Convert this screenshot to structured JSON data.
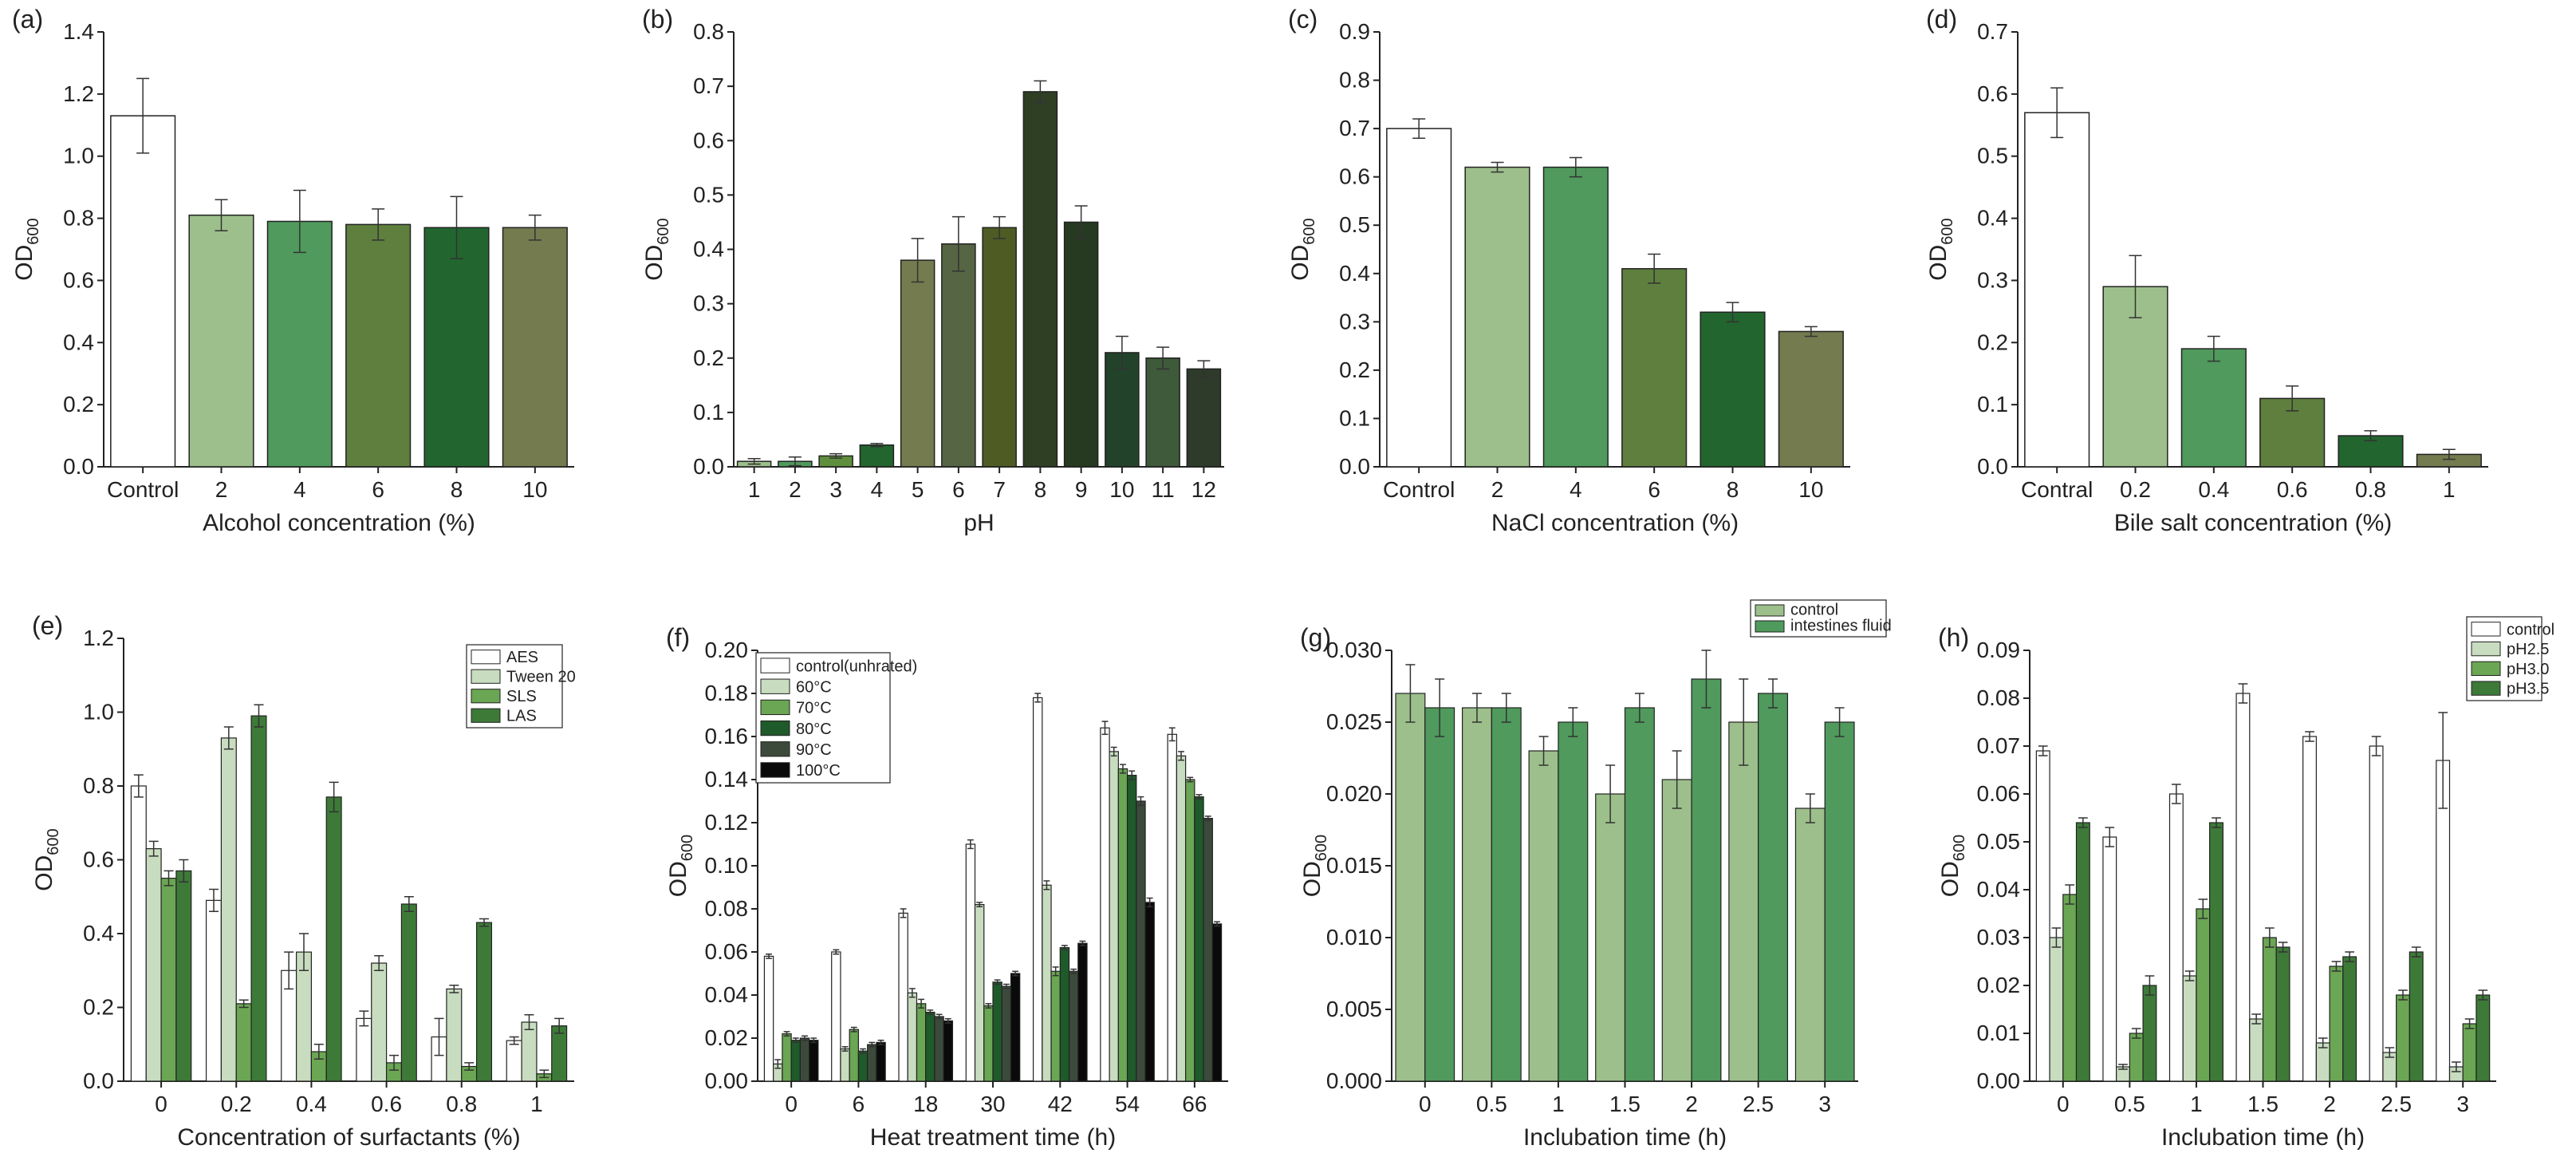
{
  "chart_data": [
    {
      "panel": "(a)",
      "type": "bar",
      "xlabel": "Alcohol concentration (%)",
      "ylabel": "OD",
      "ylabel_sub": "600",
      "ylim": [
        0,
        1.4
      ],
      "yticks": [
        "0.0",
        "0.2",
        "0.4",
        "0.6",
        "0.8",
        "1.0",
        "1.2",
        "1.4"
      ],
      "categories": [
        "Control",
        "2",
        "4",
        "6",
        "8",
        "10"
      ],
      "values": [
        1.13,
        0.81,
        0.79,
        0.78,
        0.77,
        0.77
      ],
      "errors": [
        0.12,
        0.05,
        0.1,
        0.05,
        0.1,
        0.04
      ],
      "colors": [
        "#ffffff",
        "#9dbf8b",
        "#4f9a5c",
        "#5f7f3e",
        "#22652f",
        "#737b4f"
      ]
    },
    {
      "panel": "(b)",
      "type": "bar",
      "xlabel": "pH",
      "ylabel": "OD",
      "ylabel_sub": "600",
      "ylim": [
        0,
        0.8
      ],
      "yticks": [
        "0.0",
        "0.1",
        "0.2",
        "0.3",
        "0.4",
        "0.5",
        "0.6",
        "0.7",
        "0.8"
      ],
      "categories": [
        "1",
        "2",
        "3",
        "4",
        "5",
        "6",
        "7",
        "8",
        "9",
        "10",
        "11",
        "12"
      ],
      "values": [
        0.01,
        0.01,
        0.02,
        0.04,
        0.38,
        0.41,
        0.44,
        0.69,
        0.45,
        0.21,
        0.2,
        0.18
      ],
      "errors": [
        0.005,
        0.008,
        0.004,
        0.003,
        0.04,
        0.05,
        0.02,
        0.02,
        0.03,
        0.03,
        0.02,
        0.015
      ],
      "colors": [
        "#9dbf8b",
        "#4f9a5c",
        "#5f8f3e",
        "#22652f",
        "#737b4f",
        "#566543",
        "#4e5c24",
        "#2f3f24",
        "#263a22",
        "#22432a",
        "#3f5a3a",
        "#2e3a2a"
      ]
    },
    {
      "panel": "(c)",
      "type": "bar",
      "xlabel": "NaCl concentration (%)",
      "ylabel": "OD",
      "ylabel_sub": "600",
      "ylim": [
        0,
        0.9
      ],
      "yticks": [
        "0.0",
        "0.1",
        "0.2",
        "0.3",
        "0.4",
        "0.5",
        "0.6",
        "0.7",
        "0.8",
        "0.9"
      ],
      "categories": [
        "Control",
        "2",
        "4",
        "6",
        "8",
        "10"
      ],
      "values": [
        0.7,
        0.62,
        0.62,
        0.41,
        0.32,
        0.28
      ],
      "errors": [
        0.02,
        0.01,
        0.02,
        0.03,
        0.02,
        0.01
      ],
      "colors": [
        "#ffffff",
        "#9dbf8b",
        "#4f9a5c",
        "#5f7f3e",
        "#22652f",
        "#737b4f"
      ]
    },
    {
      "panel": "(d)",
      "type": "bar",
      "xlabel": "Bile salt concentration (%)",
      "ylabel": "OD",
      "ylabel_sub": "600",
      "ylim": [
        0,
        0.7
      ],
      "yticks": [
        "0.0",
        "0.1",
        "0.2",
        "0.3",
        "0.4",
        "0.5",
        "0.6",
        "0.7"
      ],
      "categories": [
        "Contral",
        "0.2",
        "0.4",
        "0.6",
        "0.8",
        "1"
      ],
      "values": [
        0.57,
        0.29,
        0.19,
        0.11,
        0.05,
        0.02
      ],
      "errors": [
        0.04,
        0.05,
        0.02,
        0.02,
        0.008,
        0.008
      ],
      "colors": [
        "#ffffff",
        "#9dbf8b",
        "#4f9a5c",
        "#5f7f3e",
        "#22652f",
        "#737b4f"
      ]
    },
    {
      "panel": "(e)",
      "type": "bar",
      "xlabel": "Concentration of surfactants (%)",
      "ylabel": "OD",
      "ylabel_sub": "600",
      "ylim": [
        0,
        1.2
      ],
      "yticks": [
        "0.0",
        "0.2",
        "0.4",
        "0.6",
        "0.8",
        "1.0",
        "1.2"
      ],
      "categories": [
        "0",
        "0.2",
        "0.4",
        "0.6",
        "0.8",
        "1"
      ],
      "legend_position": "top-right",
      "series": [
        {
          "name": "AES",
          "color": "#ffffff",
          "values": [
            0.8,
            0.49,
            0.3,
            0.17,
            0.12,
            0.11
          ],
          "errors": [
            0.03,
            0.03,
            0.05,
            0.02,
            0.05,
            0.01
          ]
        },
        {
          "name": "Tween 20",
          "color": "#c8dcc0",
          "values": [
            0.63,
            0.93,
            0.35,
            0.32,
            0.25,
            0.16
          ],
          "errors": [
            0.02,
            0.03,
            0.05,
            0.02,
            0.01,
            0.02
          ]
        },
        {
          "name": "SLS",
          "color": "#6aa653",
          "values": [
            0.55,
            0.21,
            0.08,
            0.05,
            0.04,
            0.02
          ],
          "errors": [
            0.02,
            0.01,
            0.02,
            0.02,
            0.01,
            0.01
          ]
        },
        {
          "name": "LAS",
          "color": "#3d7a38",
          "values": [
            0.57,
            0.99,
            0.77,
            0.48,
            0.43,
            0.15
          ],
          "errors": [
            0.03,
            0.03,
            0.04,
            0.02,
            0.01,
            0.02
          ]
        }
      ]
    },
    {
      "panel": "(f)",
      "type": "bar",
      "xlabel": "Heat treatment time (h)",
      "ylabel": "OD",
      "ylabel_sub": "600",
      "ylim": [
        0,
        0.2
      ],
      "yticks": [
        "0.00",
        "0.02",
        "0.04",
        "0.06",
        "0.08",
        "0.10",
        "0.12",
        "0.14",
        "0.16",
        "0.18",
        "0.20"
      ],
      "categories": [
        "0",
        "6",
        "18",
        "30",
        "42",
        "54",
        "66"
      ],
      "legend_position": "top-left",
      "series": [
        {
          "name": "control(unhrated)",
          "color": "#ffffff",
          "values": [
            0.058,
            0.06,
            0.078,
            0.11,
            0.178,
            0.164,
            0.161
          ],
          "errors": [
            0.001,
            0.001,
            0.002,
            0.002,
            0.002,
            0.003,
            0.003
          ]
        },
        {
          "name": "60°C",
          "color": "#c8dcc0",
          "values": [
            0.008,
            0.015,
            0.041,
            0.082,
            0.091,
            0.153,
            0.151
          ],
          "errors": [
            0.002,
            0.001,
            0.002,
            0.001,
            0.002,
            0.002,
            0.002
          ]
        },
        {
          "name": "70°C",
          "color": "#6aa653",
          "values": [
            0.022,
            0.024,
            0.036,
            0.035,
            0.051,
            0.145,
            0.14
          ],
          "errors": [
            0.001,
            0.001,
            0.002,
            0.001,
            0.002,
            0.002,
            0.001
          ]
        },
        {
          "name": "80°C",
          "color": "#1f5a2a",
          "values": [
            0.019,
            0.014,
            0.032,
            0.046,
            0.062,
            0.142,
            0.132
          ],
          "errors": [
            0.001,
            0.001,
            0.001,
            0.001,
            0.001,
            0.002,
            0.001
          ]
        },
        {
          "name": "90°C",
          "color": "#3c4a3c",
          "values": [
            0.02,
            0.017,
            0.03,
            0.044,
            0.051,
            0.13,
            0.122
          ],
          "errors": [
            0.001,
            0.001,
            0.001,
            0.001,
            0.001,
            0.002,
            0.001
          ]
        },
        {
          "name": "100°C",
          "color": "#0a0a0a",
          "values": [
            0.019,
            0.018,
            0.028,
            0.05,
            0.064,
            0.083,
            0.073
          ],
          "errors": [
            0.001,
            0.001,
            0.001,
            0.001,
            0.001,
            0.002,
            0.001
          ]
        }
      ]
    },
    {
      "panel": "(g)",
      "type": "bar",
      "xlabel": "Inclubation time (h)",
      "ylabel": "OD",
      "ylabel_sub": "600",
      "ylim": [
        0,
        0.03
      ],
      "yticks": [
        "0.000",
        "0.005",
        "0.010",
        "0.015",
        "0.020",
        "0.025",
        "0.030"
      ],
      "categories": [
        "0",
        "0.5",
        "1",
        "1.5",
        "2",
        "2.5",
        "3"
      ],
      "legend_position": "top-right",
      "series": [
        {
          "name": "control",
          "color": "#9dbf8b",
          "values": [
            0.027,
            0.026,
            0.023,
            0.02,
            0.021,
            0.025,
            0.019
          ],
          "errors": [
            0.002,
            0.001,
            0.001,
            0.002,
            0.002,
            0.003,
            0.001
          ]
        },
        {
          "name": "intestines fluid",
          "color": "#4f9a5c",
          "values": [
            0.026,
            0.026,
            0.025,
            0.026,
            0.028,
            0.027,
            0.025
          ],
          "errors": [
            0.002,
            0.001,
            0.001,
            0.001,
            0.002,
            0.001,
            0.001
          ]
        }
      ]
    },
    {
      "panel": "(h)",
      "type": "bar",
      "xlabel": "Inclubation time (h)",
      "ylabel": "OD",
      "ylabel_sub": "600",
      "ylim": [
        0,
        0.09
      ],
      "yticks": [
        "0.00",
        "0.01",
        "0.02",
        "0.03",
        "0.04",
        "0.05",
        "0.06",
        "0.07",
        "0.08",
        "0.09"
      ],
      "categories": [
        "0",
        "0.5",
        "1",
        "1.5",
        "2",
        "2.5",
        "3"
      ],
      "legend_position": "top-right",
      "series": [
        {
          "name": "control",
          "color": "#ffffff",
          "values": [
            0.069,
            0.051,
            0.06,
            0.081,
            0.072,
            0.07,
            0.067
          ],
          "errors": [
            0.001,
            0.002,
            0.002,
            0.002,
            0.001,
            0.002,
            0.01
          ]
        },
        {
          "name": "pH2.5",
          "color": "#c8dcc0",
          "values": [
            0.03,
            0.003,
            0.022,
            0.013,
            0.008,
            0.006,
            0.003
          ],
          "errors": [
            0.002,
            0.0005,
            0.001,
            0.001,
            0.001,
            0.001,
            0.001
          ]
        },
        {
          "name": "pH3.0",
          "color": "#6aa653",
          "values": [
            0.039,
            0.01,
            0.036,
            0.03,
            0.024,
            0.018,
            0.012
          ],
          "errors": [
            0.002,
            0.001,
            0.002,
            0.002,
            0.001,
            0.001,
            0.001
          ]
        },
        {
          "name": "pH3.5",
          "color": "#3d7a38",
          "values": [
            0.054,
            0.02,
            0.054,
            0.028,
            0.026,
            0.027,
            0.018
          ],
          "errors": [
            0.001,
            0.002,
            0.001,
            0.001,
            0.001,
            0.001,
            0.001
          ]
        }
      ]
    }
  ]
}
